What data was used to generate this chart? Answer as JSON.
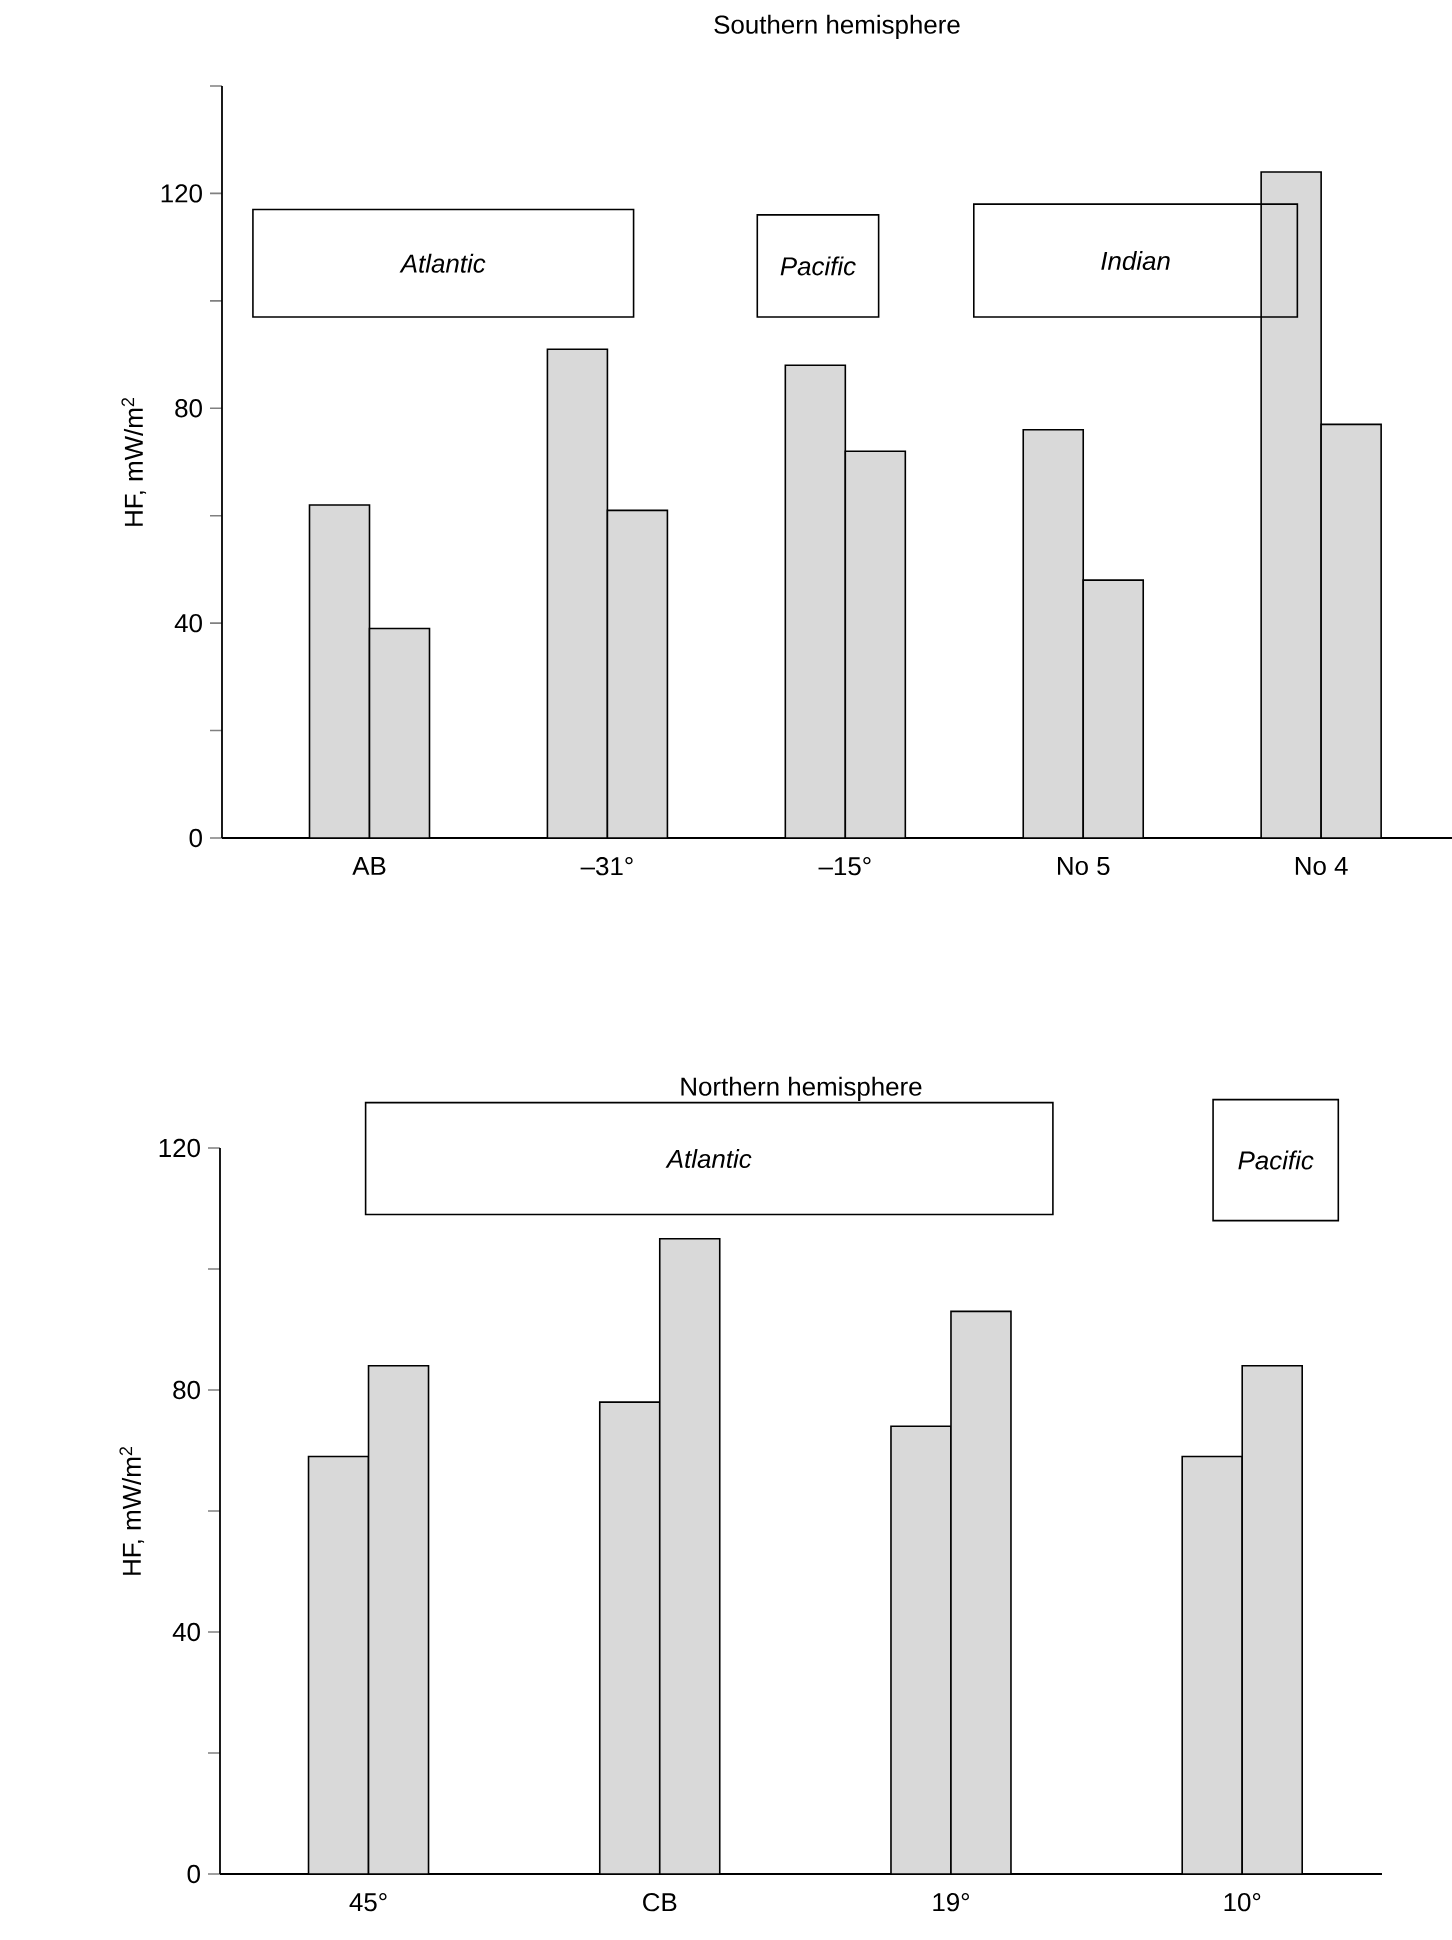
{
  "chart_data": [
    {
      "type": "bar",
      "title": "Southern hemisphere",
      "ylabel": "HF, mW/m$^{2}$",
      "categories": [
        "AB",
        "–31°",
        "–15°",
        "No 5",
        "No 4"
      ],
      "series": [
        {
          "color": "#d9d9d9",
          "values": [
            62,
            91,
            88,
            76,
            124
          ]
        },
        {
          "color": "#d9d9d9",
          "values": [
            39,
            61,
            72,
            48,
            77
          ]
        }
      ],
      "ylim": [
        0,
        140
      ],
      "yticks": [
        0,
        {
          "value": 20,
          "label": null
        },
        40,
        {
          "value": 60,
          "label": null
        },
        80,
        {
          "value": 100,
          "label": null
        },
        120,
        {
          "value": 140,
          "label": null
        }
      ],
      "annotations": [
        "Atlantic",
        "Pacific",
        "Indian"
      ]
    },
    {
      "type": "bar",
      "title": "Northern hemisphere",
      "ylabel": "HF, mW/m$^{2}$",
      "categories": [
        "45°",
        "CB",
        "19°",
        "10°"
      ],
      "series": [
        {
          "color": "#d9d9d9",
          "values": [
            69,
            78,
            74,
            69
          ]
        },
        {
          "color": "#d9d9d9",
          "values": [
            84,
            105,
            93,
            84
          ]
        }
      ],
      "ylim": [
        0,
        120
      ],
      "yticks": [
        0,
        {
          "value": 20,
          "label": null
        },
        40,
        {
          "value": 60,
          "label": null
        },
        80,
        {
          "value": 100,
          "label": null
        },
        120
      ],
      "annotations": [
        "Atlantic",
        "Pacific"
      ]
    }
  ]
}
